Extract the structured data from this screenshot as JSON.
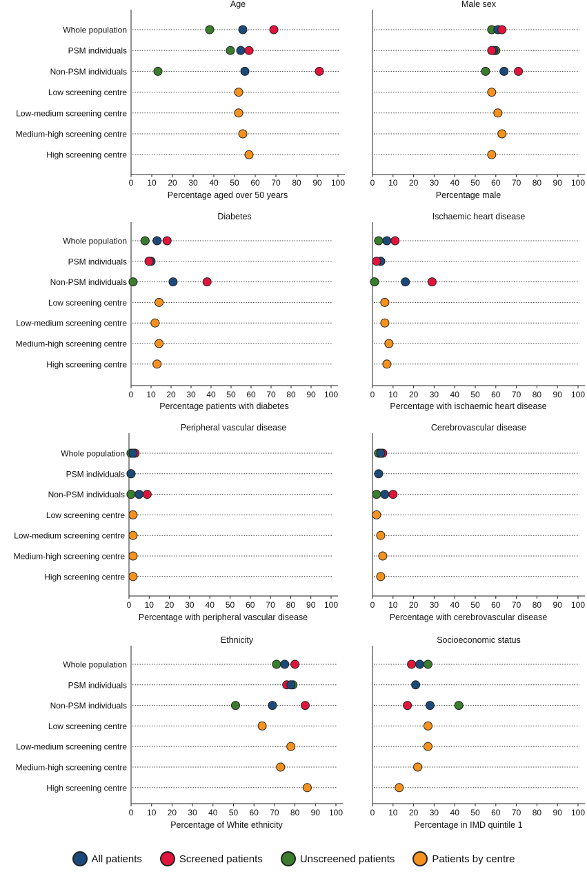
{
  "colors": {
    "all": "#1b4a7a",
    "screened": "#e0143c",
    "unscreened": "#3a7d2c",
    "centre": "#f5921e"
  },
  "legend": [
    {
      "key": "all",
      "label": "All patients"
    },
    {
      "key": "screened",
      "label": "Screened patients"
    },
    {
      "key": "unscreened",
      "label": "Unscreened patients"
    },
    {
      "key": "centre",
      "label": "Patients by centre"
    }
  ],
  "chart_data": [
    {
      "type": "dot",
      "title": "Age",
      "xlabel": "Percentage aged over 50 years",
      "categories": [
        "Whole population",
        "PSM individuals",
        "Non-PSM individuals",
        "Low screening centre",
        "Low-medium screening centre",
        "Medium-high screening centre",
        "High screening centre"
      ],
      "xlim": [
        0,
        100
      ],
      "xticks": [
        0,
        10,
        20,
        30,
        40,
        50,
        60,
        70,
        80,
        90,
        100
      ],
      "series": [
        {
          "name": "Unscreened patients",
          "key": "unscreened",
          "values": [
            38,
            48,
            13,
            null,
            null,
            null,
            null
          ]
        },
        {
          "name": "All patients",
          "key": "all",
          "values": [
            54,
            53,
            55,
            null,
            null,
            null,
            null
          ]
        },
        {
          "name": "Screened patients",
          "key": "screened",
          "values": [
            69,
            57,
            91,
            null,
            null,
            null,
            null
          ]
        },
        {
          "name": "Patients by centre",
          "key": "centre",
          "values": [
            null,
            null,
            null,
            52,
            52,
            54,
            57
          ]
        }
      ]
    },
    {
      "type": "dot",
      "title": "Male sex",
      "xlabel": "Percentage male",
      "categories": [
        "Whole population",
        "PSM individuals",
        "Non-PSM individuals",
        "Low screening centre",
        "Low-medium screening centre",
        "Medium-high screening centre",
        "High screening centre"
      ],
      "xlim": [
        0,
        100
      ],
      "xticks": [
        0,
        10,
        20,
        30,
        40,
        50,
        60,
        70,
        80,
        90,
        100
      ],
      "series": [
        {
          "name": "Unscreened patients",
          "key": "unscreened",
          "values": [
            58,
            60,
            55,
            null,
            null,
            null,
            null
          ]
        },
        {
          "name": "All patients",
          "key": "all",
          "values": [
            61,
            59,
            64,
            null,
            null,
            null,
            null
          ]
        },
        {
          "name": "Screened patients",
          "key": "screened",
          "values": [
            63,
            58,
            71,
            null,
            null,
            null,
            null
          ]
        },
        {
          "name": "Patients by centre",
          "key": "centre",
          "values": [
            null,
            null,
            null,
            58,
            61,
            63,
            58
          ]
        }
      ]
    },
    {
      "type": "dot",
      "title": "Diabetes",
      "xlabel": "Percentage patients with diabetes",
      "categories": [
        "Whole population",
        "PSM individuals",
        "Non-PSM individuals",
        "Low screening centre",
        "Low-medium screening centre",
        "Medium-high screening centre",
        "High screening centre"
      ],
      "xlim": [
        0,
        100
      ],
      "xticks": [
        0,
        10,
        20,
        30,
        40,
        50,
        60,
        70,
        80,
        90,
        100
      ],
      "series": [
        {
          "name": "Unscreened patients",
          "key": "unscreened",
          "values": [
            7,
            9,
            1,
            null,
            null,
            null,
            null
          ]
        },
        {
          "name": "All patients",
          "key": "all",
          "values": [
            13,
            10,
            21,
            null,
            null,
            null,
            null
          ]
        },
        {
          "name": "Screened patients",
          "key": "screened",
          "values": [
            18,
            9,
            38,
            null,
            null,
            null,
            null
          ]
        },
        {
          "name": "Patients by centre",
          "key": "centre",
          "values": [
            null,
            null,
            null,
            14,
            12,
            14,
            13
          ]
        }
      ]
    },
    {
      "type": "dot",
      "title": "Ischaemic heart disease",
      "xlabel": "Percentage with ischaemic heart disease",
      "categories": [
        "Whole population",
        "PSM individuals",
        "Non-PSM individuals",
        "Low screening centre",
        "Low-medium screening centre",
        "Medium-high screening centre",
        "High screening centre"
      ],
      "xlim": [
        0,
        100
      ],
      "xticks": [
        0,
        10,
        20,
        30,
        40,
        50,
        60,
        70,
        80,
        90,
        100
      ],
      "series": [
        {
          "name": "Unscreened patients",
          "key": "unscreened",
          "values": [
            3,
            4,
            1,
            null,
            null,
            null,
            null
          ]
        },
        {
          "name": "All patients",
          "key": "all",
          "values": [
            7,
            4,
            16,
            null,
            null,
            null,
            null
          ]
        },
        {
          "name": "Screened patients",
          "key": "screened",
          "values": [
            11,
            2,
            29,
            null,
            null,
            null,
            null
          ]
        },
        {
          "name": "Patients by centre",
          "key": "centre",
          "values": [
            null,
            null,
            null,
            6,
            6,
            8,
            7
          ]
        }
      ]
    },
    {
      "type": "dot",
      "title": "Peripheral vascular disease",
      "xlabel": "Percentage with peripheral vascular disease",
      "categories": [
        "Whole population",
        "PSM individuals",
        "Non-PSM individuals",
        "Low screening centre",
        "Low-medium screening centre",
        "Medium-high screening centre",
        "High screening centre"
      ],
      "xlim": [
        0,
        100
      ],
      "xticks": [
        0,
        10,
        20,
        30,
        40,
        50,
        60,
        70,
        80,
        90,
        100
      ],
      "series": [
        {
          "name": "Screened patients",
          "key": "screened",
          "values": [
            3,
            null,
            9,
            null,
            null,
            null,
            null
          ]
        },
        {
          "name": "Unscreened patients",
          "key": "unscreened",
          "values": [
            1,
            1,
            1,
            null,
            null,
            null,
            null
          ]
        },
        {
          "name": "All patients",
          "key": "all",
          "values": [
            2,
            1,
            5,
            null,
            null,
            null,
            null
          ]
        },
        {
          "name": "Patients by centre",
          "key": "centre",
          "values": [
            null,
            null,
            null,
            2,
            2,
            2,
            2
          ]
        }
      ]
    },
    {
      "type": "dot",
      "title": "Cerebrovascular disease",
      "xlabel": "Percentage with cerebrovascular disease",
      "categories": [
        "Whole population",
        "PSM individuals",
        "Non-PSM individuals",
        "Low screening centre",
        "Low-medium screening centre",
        "Medium-high screening centre",
        "High screening centre"
      ],
      "xlim": [
        0,
        100
      ],
      "xticks": [
        0,
        10,
        20,
        30,
        40,
        50,
        60,
        70,
        80,
        90,
        100
      ],
      "series": [
        {
          "name": "Screened patients",
          "key": "screened",
          "values": [
            5,
            null,
            10,
            null,
            null,
            null,
            null
          ]
        },
        {
          "name": "Unscreened patients",
          "key": "unscreened",
          "values": [
            3,
            null,
            2,
            null,
            null,
            null,
            null
          ]
        },
        {
          "name": "All patients",
          "key": "all",
          "values": [
            4,
            3,
            6,
            null,
            null,
            null,
            null
          ]
        },
        {
          "name": "Patients by centre",
          "key": "centre",
          "values": [
            null,
            null,
            null,
            2,
            4,
            5,
            4
          ]
        }
      ]
    },
    {
      "type": "dot",
      "title": "Ethnicity",
      "xlabel": "Percentage of White ethnicity",
      "categories": [
        "Whole population",
        "PSM individuals",
        "Non-PSM individuals",
        "Low screening centre",
        "Low-medium screening centre",
        "Medium-high screening centre",
        "High screening centre"
      ],
      "xlim": [
        0,
        100
      ],
      "xticks": [
        0,
        10,
        20,
        30,
        40,
        50,
        60,
        70,
        80,
        90,
        100
      ],
      "series": [
        {
          "name": "Unscreened patients",
          "key": "unscreened",
          "values": [
            71,
            79,
            51,
            null,
            null,
            null,
            null
          ]
        },
        {
          "name": "Screened patients",
          "key": "screened",
          "values": [
            80,
            76,
            85,
            null,
            null,
            null,
            null
          ]
        },
        {
          "name": "All patients",
          "key": "all",
          "values": [
            75,
            78,
            69,
            null,
            null,
            null,
            null
          ]
        },
        {
          "name": "Patients by centre",
          "key": "centre",
          "values": [
            null,
            null,
            null,
            64,
            78,
            73,
            86
          ]
        }
      ]
    },
    {
      "type": "dot",
      "title": "Socioeconomic status",
      "xlabel": "Percentage in IMD quintile 1",
      "categories": [
        "Whole population",
        "PSM individuals",
        "Non-PSM individuals",
        "Low screening centre",
        "Low-medium screening centre",
        "Medium-high screening centre",
        "High screening centre"
      ],
      "xlim": [
        0,
        100
      ],
      "xticks": [
        0,
        10,
        20,
        30,
        40,
        50,
        60,
        70,
        80,
        90,
        100
      ],
      "series": [
        {
          "name": "Screened patients",
          "key": "screened",
          "values": [
            19,
            null,
            17,
            null,
            null,
            null,
            null
          ]
        },
        {
          "name": "All patients",
          "key": "all",
          "values": [
            23,
            21,
            28,
            null,
            null,
            null,
            null
          ]
        },
        {
          "name": "Unscreened patients",
          "key": "unscreened",
          "values": [
            27,
            null,
            42,
            null,
            null,
            null,
            null
          ]
        },
        {
          "name": "Patients by centre",
          "key": "centre",
          "values": [
            null,
            null,
            null,
            27,
            27,
            22,
            13
          ]
        }
      ]
    }
  ]
}
